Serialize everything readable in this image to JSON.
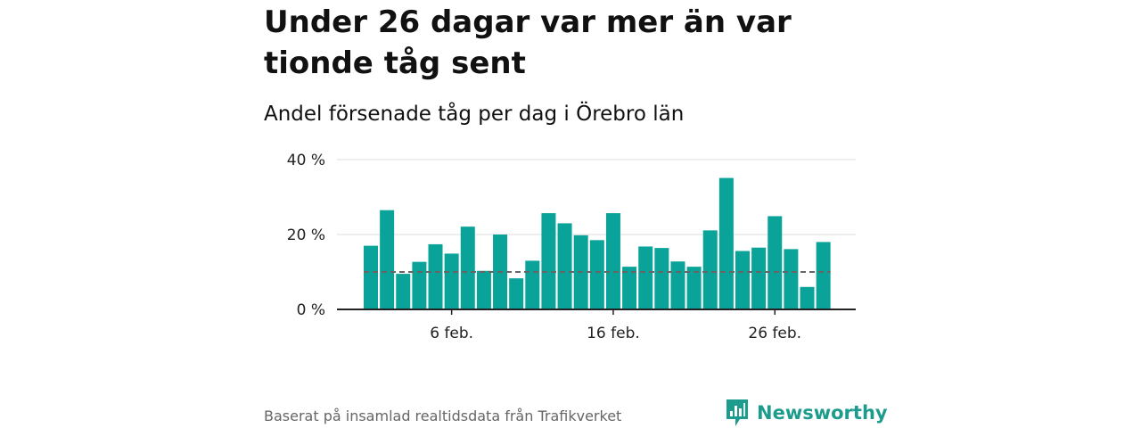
{
  "title": "Under 26 dagar var mer än var tionde tåg sent",
  "subtitle": "Andel försenade tåg per dag i Örebro län",
  "source": "Baserat på insamlad realtidsdata från Trafikverket",
  "brand": {
    "name": "Newsworthy",
    "icon": "newsworthy-logo-icon"
  },
  "colors": {
    "bar": "#0aa39a",
    "reference_line": "#666666",
    "grid": "#dddddd",
    "axis": "#222222",
    "brand": "#1d9c8e"
  },
  "chart_data": {
    "type": "bar",
    "title": "Andel försenade tåg per dag i Örebro län",
    "xlabel": "",
    "ylabel": "",
    "x": [
      "2024-02-01",
      "2024-02-02",
      "2024-02-03",
      "2024-02-04",
      "2024-02-05",
      "2024-02-06",
      "2024-02-07",
      "2024-02-08",
      "2024-02-09",
      "2024-02-10",
      "2024-02-11",
      "2024-02-12",
      "2024-02-13",
      "2024-02-14",
      "2024-02-15",
      "2024-02-16",
      "2024-02-17",
      "2024-02-18",
      "2024-02-19",
      "2024-02-20",
      "2024-02-21",
      "2024-02-22",
      "2024-02-23",
      "2024-02-24",
      "2024-02-25",
      "2024-02-26",
      "2024-02-27",
      "2024-02-28",
      "2024-02-29"
    ],
    "values": [
      17,
      26.5,
      9.5,
      12.7,
      17.4,
      14.9,
      22.1,
      10.3,
      20,
      8.3,
      13,
      25.7,
      23,
      19.8,
      18.5,
      25.7,
      11.4,
      16.8,
      16.4,
      12.8,
      11.4,
      21.1,
      35.1,
      15.6,
      16.5,
      24.9,
      16.1,
      6,
      18
    ],
    "reference_line": 10,
    "ylim": [
      0,
      40
    ],
    "yticks": [
      0,
      20,
      40
    ],
    "ytick_labels": [
      "0 %",
      "20 %",
      "40 %"
    ],
    "xtick_positions": [
      "2024-02-06",
      "2024-02-16",
      "2024-02-26"
    ],
    "xtick_labels": [
      "6 feb.",
      "16 feb.",
      "26 feb."
    ],
    "grid": true,
    "legend": "none"
  }
}
